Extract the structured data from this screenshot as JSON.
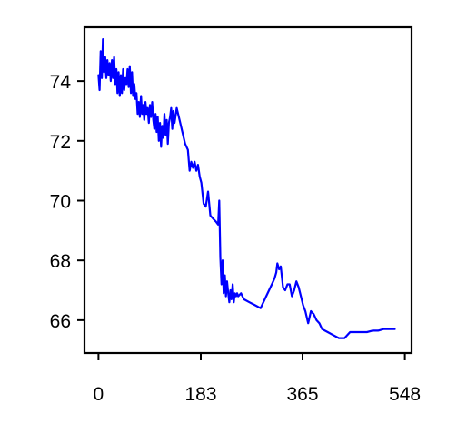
{
  "chart_data": {
    "type": "line",
    "title": "",
    "xlabel": "",
    "ylabel": "",
    "xlim": [
      -25,
      560
    ],
    "ylim": [
      64.9,
      75.8
    ],
    "xticks": [
      0,
      183,
      365,
      548
    ],
    "yticks": [
      66,
      68,
      70,
      72,
      74
    ],
    "grid": false,
    "legend": "none",
    "colors": {
      "line": "#0000ff",
      "axes": "#000000",
      "background": "#ffffff"
    },
    "series": [
      {
        "name": "",
        "x": [
          0,
          2,
          4,
          6,
          8,
          10,
          12,
          14,
          16,
          18,
          20,
          22,
          24,
          26,
          28,
          30,
          32,
          34,
          36,
          38,
          40,
          42,
          44,
          46,
          48,
          50,
          52,
          54,
          56,
          58,
          60,
          62,
          64,
          66,
          68,
          70,
          72,
          74,
          76,
          78,
          80,
          82,
          84,
          86,
          88,
          90,
          92,
          94,
          96,
          98,
          100,
          102,
          104,
          106,
          108,
          110,
          112,
          114,
          116,
          118,
          120,
          122,
          124,
          126,
          128,
          130,
          132,
          134,
          136,
          140,
          145,
          150,
          155,
          160,
          163,
          166,
          169,
          172,
          175,
          178,
          181,
          184,
          188,
          192,
          196,
          200,
          205,
          210,
          214,
          216,
          218,
          220,
          222,
          224,
          226,
          228,
          230,
          232,
          234,
          236,
          238,
          240,
          242,
          244,
          246,
          248,
          250,
          255,
          260,
          270,
          280,
          290,
          300,
          310,
          315,
          318,
          320,
          323,
          326,
          330,
          334,
          338,
          342,
          346,
          350,
          354,
          358,
          362,
          366,
          370,
          375,
          380,
          385,
          390,
          395,
          400,
          410,
          420,
          430,
          440,
          450,
          460,
          470,
          480,
          490,
          500,
          510,
          520,
          530
        ],
        "values": [
          74.2,
          73.7,
          75.0,
          74.1,
          75.4,
          74.3,
          74.8,
          74.1,
          74.7,
          74.2,
          74.6,
          74.0,
          74.7,
          74.1,
          74.8,
          73.9,
          74.4,
          73.6,
          74.3,
          73.5,
          74.2,
          73.6,
          74.4,
          73.7,
          74.1,
          73.9,
          74.4,
          73.8,
          74.5,
          73.6,
          74.3,
          73.5,
          73.9,
          73.4,
          73.6,
          72.9,
          73.3,
          72.8,
          73.5,
          72.9,
          73.2,
          72.7,
          73.3,
          72.9,
          73.1,
          72.6,
          73.2,
          72.8,
          73.3,
          72.7,
          72.4,
          72.9,
          72.3,
          72.8,
          72.0,
          72.6,
          71.8,
          72.5,
          72.1,
          72.9,
          72.2,
          72.7,
          71.9,
          72.6,
          72.8,
          73.1,
          72.4,
          73.0,
          72.6,
          73.1,
          72.7,
          72.3,
          71.9,
          71.7,
          71.0,
          71.3,
          71.1,
          71.3,
          71.0,
          71.2,
          70.8,
          70.6,
          69.9,
          69.8,
          70.3,
          69.5,
          69.4,
          69.3,
          69.2,
          70.0,
          68.1,
          67.2,
          68.0,
          66.9,
          67.5,
          66.8,
          67.3,
          66.9,
          66.6,
          67.0,
          66.7,
          67.2,
          66.6,
          66.9,
          66.8,
          66.9,
          66.8,
          66.9,
          66.7,
          66.6,
          66.5,
          66.4,
          66.8,
          67.2,
          67.4,
          67.6,
          67.9,
          67.7,
          67.8,
          67.1,
          67.0,
          67.2,
          67.2,
          66.8,
          67.0,
          67.3,
          67.1,
          66.8,
          66.5,
          66.3,
          65.9,
          66.3,
          66.2,
          66.0,
          65.9,
          65.7,
          65.6,
          65.5,
          65.4,
          65.4,
          65.6,
          65.6,
          65.6,
          65.6,
          65.65,
          65.65,
          65.7,
          65.7,
          65.7
        ]
      }
    ]
  }
}
